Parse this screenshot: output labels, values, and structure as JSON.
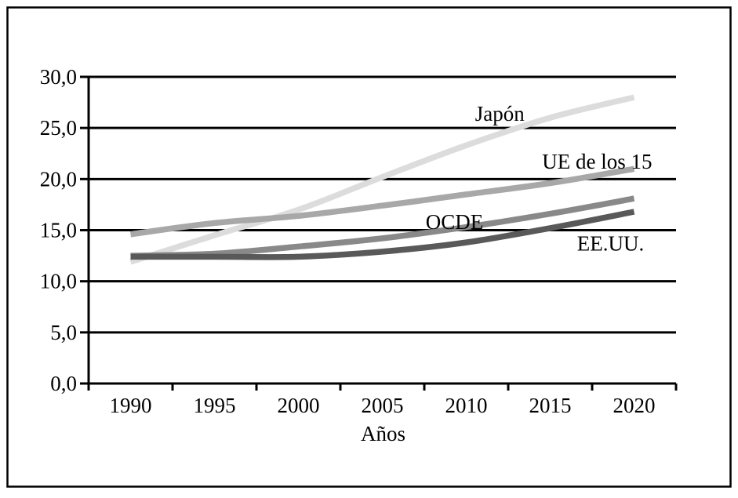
{
  "chart_data": {
    "type": "line",
    "title": "",
    "xlabel": "Años",
    "ylabel": "",
    "x": [
      1990,
      1995,
      2000,
      2005,
      2010,
      2015,
      2020
    ],
    "xtick_labels": [
      "1990",
      "1995",
      "2000",
      "2005",
      "2010",
      "2015",
      "2020"
    ],
    "ylim": [
      0,
      30
    ],
    "ytick_step": 5,
    "ytick_labels": [
      "0,0",
      "5,0",
      "10,0",
      "15,0",
      "20,0",
      "25,0",
      "30,0"
    ],
    "grid": "horizontal-black",
    "legend_position": "inline-annotations",
    "series": [
      {
        "name": "Japón",
        "color": "#dcdcdc",
        "values": [
          11.9,
          14.5,
          17.0,
          20.2,
          23.3,
          26.0,
          28.0
        ]
      },
      {
        "name": "UE de los 15",
        "color": "#a8a8a8",
        "values": [
          14.6,
          15.7,
          16.4,
          17.4,
          18.5,
          19.6,
          21.0
        ]
      },
      {
        "name": "OCDE",
        "color": "#898989",
        "values": [
          12.5,
          12.7,
          13.4,
          14.2,
          15.3,
          16.6,
          18.1
        ]
      },
      {
        "name": "EE.UU.",
        "color": "#595959",
        "values": [
          12.4,
          12.4,
          12.4,
          12.9,
          13.8,
          15.2,
          16.8
        ]
      }
    ],
    "annotations": [
      {
        "text": "Japón",
        "x": 2012.0,
        "y": 26.4
      },
      {
        "text": "UE de los 15",
        "x": 2017.8,
        "y": 21.7
      },
      {
        "text": "OCDE",
        "x": 2009.3,
        "y": 15.8
      },
      {
        "text": "EE.UU.",
        "x": 2018.6,
        "y": 13.7
      }
    ],
    "colors": {
      "axis": "#000000",
      "grid": "#000000",
      "text": "#000000",
      "background": "#ffffff",
      "border": "#000000"
    }
  }
}
